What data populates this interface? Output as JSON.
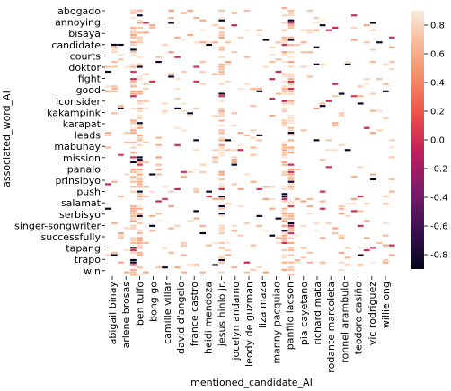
{
  "chart_data": {
    "type": "heatmap",
    "title": "",
    "xlabel": "mentioned_candidate_AI",
    "ylabel": "associated_word_AI",
    "x_tick_labels": [
      "abigail binay",
      "arlene brosas",
      "ben tulfo",
      "bong go",
      "camille villar",
      "david d'angelo",
      "france castro",
      "heidi mendoza",
      "jesus hinlo jr.",
      "jocelyn andamo",
      "leody de guzman",
      "liza maza",
      "manny pacquiao",
      "panfilo lacson",
      "pia cayetano",
      "richard mata",
      "rodante marcoleta",
      "ronnel arambulo",
      "teodoro casiño",
      "vic rodriguez",
      "willie ong"
    ],
    "y_tick_labels": [
      "abogado",
      "annoying",
      "bisaya",
      "candidate",
      "courts",
      "doktor",
      "fight",
      "good",
      "iconsider",
      "kakampink",
      "karapat",
      "leads",
      "mabuhay",
      "mission",
      "panalo",
      "prinsipyo",
      "push",
      "salamat",
      "serbisyo",
      "singer-songwriter",
      "successfully",
      "tapang",
      "trapo",
      "win"
    ],
    "colorbar": {
      "colormap": "rocket",
      "ticks": [
        "0.8",
        "0.6",
        "0.4",
        "0.2",
        "0.0",
        "-0.2",
        "-0.4",
        "-0.6",
        "-0.8"
      ],
      "range": [
        -0.9,
        0.9
      ]
    },
    "grid": false,
    "legend": "colorbar-right"
  }
}
